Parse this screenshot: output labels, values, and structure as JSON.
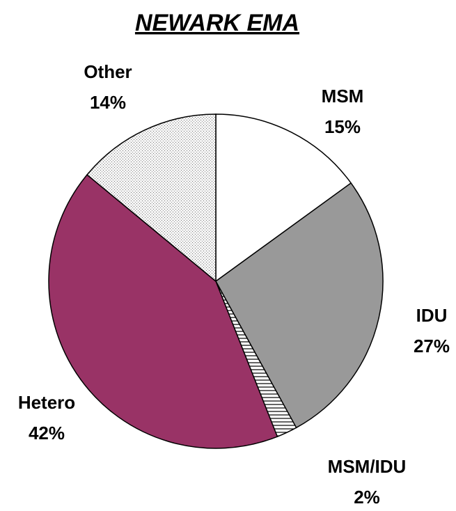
{
  "chart_data": {
    "type": "pie",
    "title": "NEWARK EMA",
    "categories": [
      "MSM",
      "IDU",
      "MSM/IDU",
      "Hetero",
      "Other"
    ],
    "values": [
      15,
      27,
      2,
      42,
      14
    ],
    "value_labels": [
      "15%",
      "27%",
      "2%",
      "42%",
      "14%"
    ],
    "colors": [
      "#ffffff",
      "#999999",
      "#ffffff",
      "#993366",
      "#f4f4f4"
    ],
    "fill_patterns": [
      null,
      null,
      "horizontal-lines",
      null,
      "dots"
    ]
  }
}
